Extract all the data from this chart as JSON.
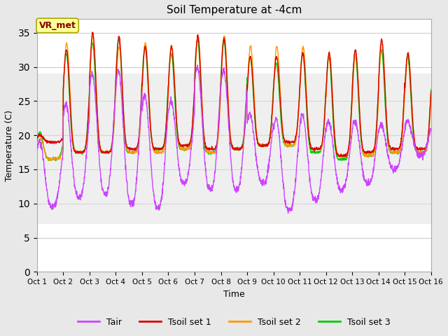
{
  "title": "Soil Temperature at -4cm",
  "xlabel": "Time",
  "ylabel": "Temperature (C)",
  "ylim": [
    0,
    37
  ],
  "yticks": [
    0,
    5,
    10,
    15,
    20,
    25,
    30,
    35
  ],
  "xlim": [
    0,
    15
  ],
  "xtick_labels": [
    "Oct 1",
    "Oct 2",
    "Oct 3",
    "Oct 4",
    "Oct 5",
    "Oct 6",
    "Oct 7",
    "Oct 8",
    "Oct 9",
    "Oct 10",
    "Oct 11",
    "Oct 12",
    "Oct 13",
    "Oct 14",
    "Oct 15",
    "Oct 16"
  ],
  "colors": {
    "Tair": "#cc44ff",
    "Tsoil1": "#dd0000",
    "Tsoil2": "#ff9900",
    "Tsoil3": "#00cc00"
  },
  "legend_labels": [
    "Tair",
    "Tsoil set 1",
    "Tsoil set 2",
    "Tsoil set 3"
  ],
  "annotation_text": "VR_met",
  "annotation_bgcolor": "#ffff99",
  "annotation_edgecolor": "#aaaa00",
  "annotation_textcolor": "#880000",
  "grid_color": "#cccccc",
  "bg_color": "#e8e8e8",
  "plot_bg_color": "#ffffff",
  "linewidth": 1.0,
  "figwidth": 6.4,
  "figheight": 4.8,
  "dpi": 100
}
